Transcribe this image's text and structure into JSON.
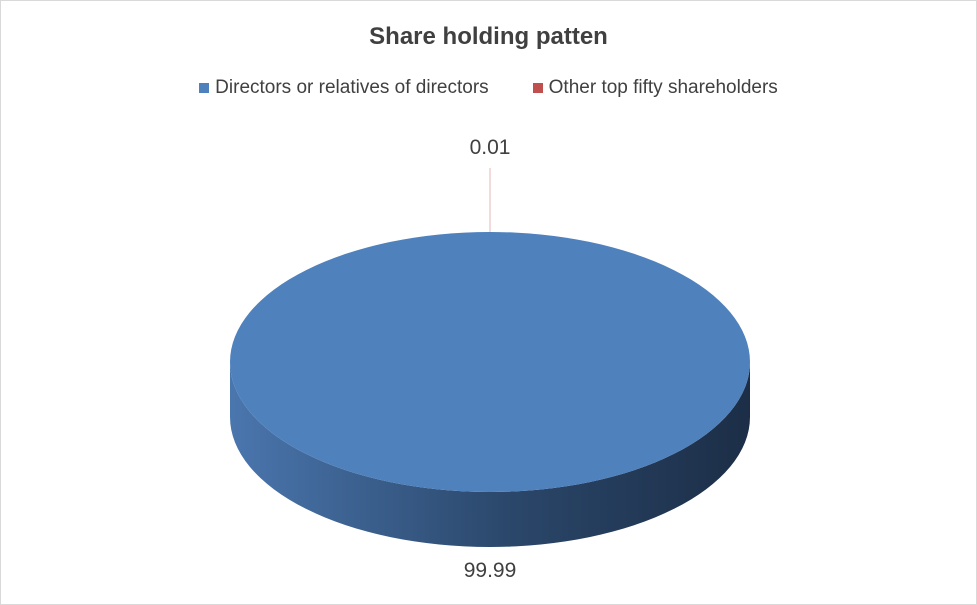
{
  "chart_data": {
    "type": "pie",
    "style": "3d",
    "title": "Share holding patten",
    "categories": [
      "Directors or relatives of directors",
      "Other top fifty shareholders"
    ],
    "values": [
      99.99,
      0.01
    ],
    "data_labels": [
      "99.99",
      "0.01"
    ],
    "colors": [
      "#4f81bd",
      "#c0504d"
    ],
    "legend_position": "top"
  }
}
